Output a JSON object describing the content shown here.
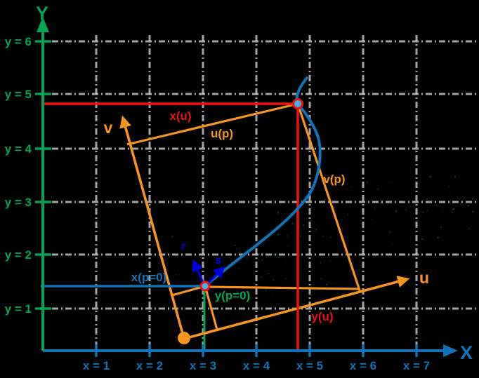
{
  "colors": {
    "background": "#000000",
    "x_axis_blue": "#1173b9",
    "y_axis_green": "#00a651",
    "uv_system_orange": "#f7941e",
    "construction_red": "#ee1212",
    "curve_blue": "#1273b8",
    "vector_dark_blue": "#0000e6",
    "grid_gray": "#c9c9c9",
    "point_fill_cyan": "#3cb4e7",
    "watermark_teal": "#15756b"
  },
  "axes": {
    "x_title": "X",
    "y_title": "Y",
    "x_ticks": [
      "x = 1",
      "x = 2",
      "x = 3",
      "x = 4",
      "x = 5",
      "x = 6",
      "x = 7"
    ],
    "y_ticks": [
      "y = 6",
      "y = 5",
      "y = 4",
      "y = 3",
      "y = 2",
      "y = 1"
    ]
  },
  "labels": {
    "u_axis": "u",
    "v_axis": "v",
    "u_p": "u(p)",
    "v_p": "v(p)",
    "x_u": "x(u)",
    "y_u": "y(u)",
    "x_p0": "x(p=0)",
    "y_p0": "y(p=0)",
    "r_vector": "r",
    "s_vector": "s"
  },
  "key_points": {
    "point_at_u": {
      "x": 4.8,
      "y": 4.85
    },
    "point_at_p0": {
      "x": 3.05,
      "y": 1.42
    },
    "uv_origin": {
      "x": 2.65,
      "y": 0.45
    }
  }
}
